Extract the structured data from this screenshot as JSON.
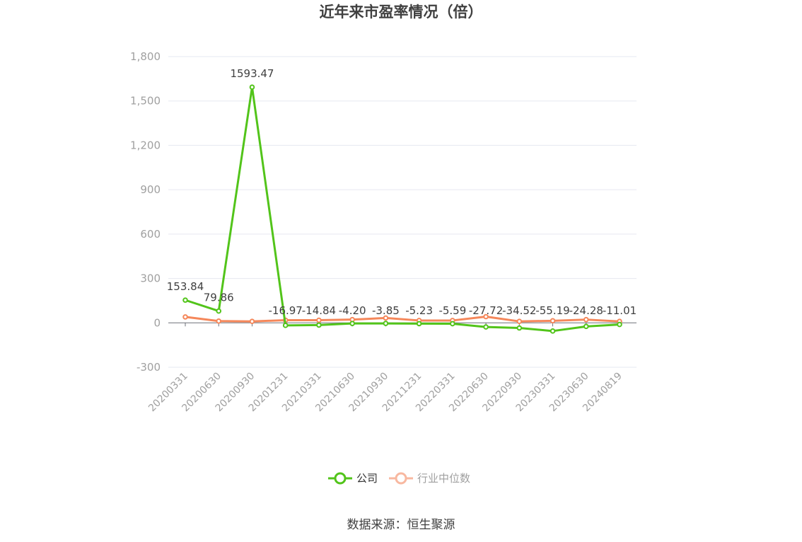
{
  "chart_data": {
    "type": "line",
    "title": "近年来市盈率情况（倍）",
    "categories": [
      "20200331",
      "20200630",
      "20200930",
      "20201231",
      "20210331",
      "20210630",
      "20210930",
      "20211231",
      "20220331",
      "20220630",
      "20220930",
      "20230331",
      "20230630",
      "20240819"
    ],
    "ylim": [
      -300,
      1800
    ],
    "yticks": [
      -300,
      0,
      300,
      600,
      900,
      1200,
      1500,
      1800
    ],
    "ytick_labels": [
      "-300",
      "0",
      "300",
      "600",
      "900",
      "1,200",
      "1,500",
      "1,800"
    ],
    "grid": true,
    "legend_position": "bottom-center",
    "series": [
      {
        "name": "公司",
        "color": "#52c41a",
        "values": [
          153.84,
          79.86,
          1593.47,
          -16.97,
          -14.84,
          -4.2,
          -3.85,
          -5.23,
          -5.59,
          -27.72,
          -34.52,
          -55.19,
          -24.28,
          -11.01
        ],
        "labels": [
          "153.84",
          "79.86",
          "1593.47",
          "-16.97",
          "-14.84",
          "-4.20",
          "-3.85",
          "-5.23",
          "-5.59",
          "-27.72",
          "-34.52",
          "-55.19",
          "-24.28",
          "-11.01"
        ]
      },
      {
        "name": "行业中位数",
        "color": "#f5875a",
        "values": [
          40,
          12,
          10,
          18,
          18,
          22,
          33,
          16,
          16,
          42,
          10,
          14,
          22,
          10
        ]
      }
    ]
  },
  "legend": {
    "company": "公司",
    "industry": "行业中位数"
  },
  "source": "数据来源：恒生聚源"
}
